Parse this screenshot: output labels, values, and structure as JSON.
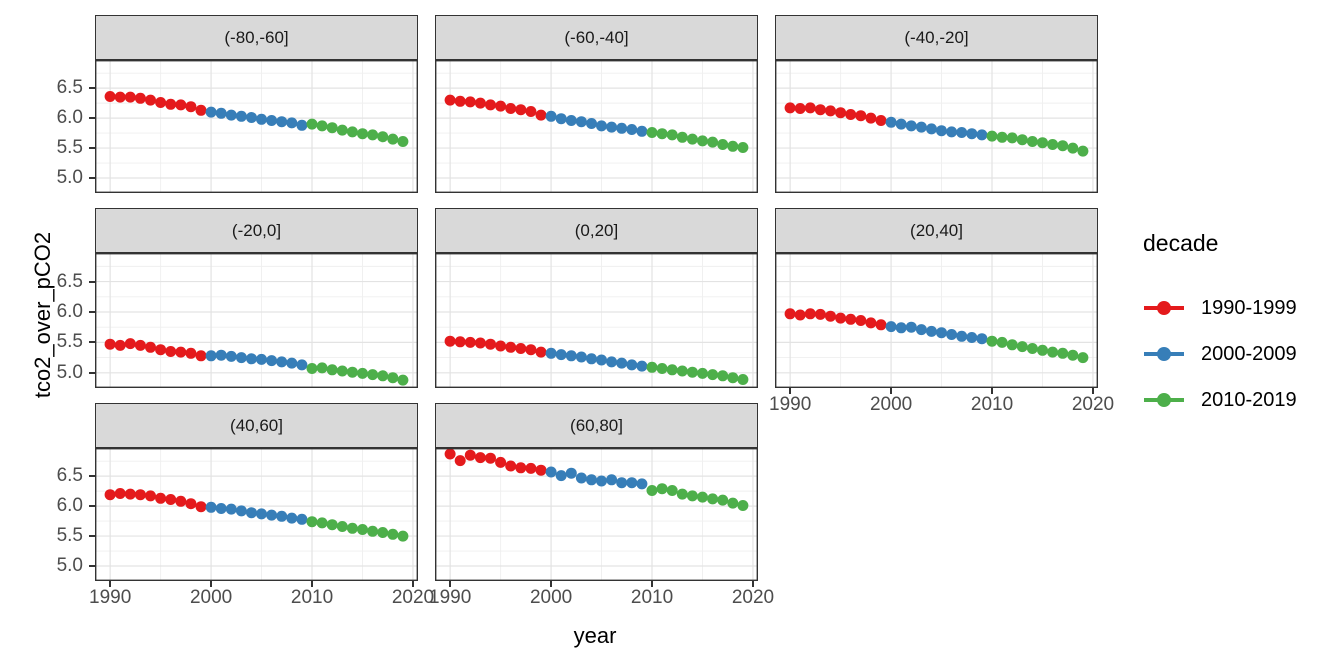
{
  "y_axis": {
    "title": "tco2_over_pCO2",
    "tick_labels": [
      "6.5",
      "6.0",
      "5.5",
      "5.0"
    ],
    "tick_values": [
      6.5,
      6.0,
      5.5,
      5.0
    ]
  },
  "x_axis": {
    "title": "year",
    "tick_labels": [
      "1990",
      "2000",
      "2010",
      "2020"
    ],
    "tick_values": [
      1990,
      2000,
      2010,
      2020
    ]
  },
  "legend": {
    "title": "decade",
    "items": [
      {
        "label": "1990-1999",
        "color": "#e41a1c"
      },
      {
        "label": "2000-2009",
        "color": "#377eb8"
      },
      {
        "label": "2010-2019",
        "color": "#4daf4a"
      }
    ]
  },
  "chart_data": {
    "type": "scatter",
    "title": "",
    "xlabel": "year",
    "ylabel": "tco2_over_pCO2",
    "xlim": [
      1988.5,
      2020.5
    ],
    "ylim": [
      4.75,
      6.97
    ],
    "x_major_ticks": [
      1990,
      2000,
      2010,
      2020
    ],
    "x_minor_ticks": [
      1995,
      2005,
      2015
    ],
    "y_major_ticks": [
      6.5,
      6.0,
      5.5,
      5.0
    ],
    "y_minor_ticks": [
      6.75,
      6.25,
      5.75,
      5.25
    ],
    "grid": "major+minor",
    "legend_position": "right",
    "series_variable": "decade",
    "series": [
      {
        "name": "1990-1999",
        "color": "#e41a1c",
        "start": 1990,
        "end": 1999
      },
      {
        "name": "2000-2009",
        "color": "#377eb8",
        "start": 2000,
        "end": 2009
      },
      {
        "name": "2010-2019",
        "color": "#4daf4a",
        "start": 2010,
        "end": 2019
      }
    ],
    "years": [
      1990,
      1991,
      1992,
      1993,
      1994,
      1995,
      1996,
      1997,
      1998,
      1999,
      2000,
      2001,
      2002,
      2003,
      2004,
      2005,
      2006,
      2007,
      2008,
      2009,
      2010,
      2011,
      2012,
      2013,
      2014,
      2015,
      2016,
      2017,
      2018,
      2019
    ],
    "facets": [
      {
        "label": "(-80,-60]",
        "values": [
          6.36,
          6.35,
          6.35,
          6.33,
          6.3,
          6.26,
          6.23,
          6.22,
          6.19,
          6.13,
          6.1,
          6.08,
          6.05,
          6.03,
          6.01,
          5.98,
          5.96,
          5.94,
          5.92,
          5.88,
          5.9,
          5.87,
          5.84,
          5.8,
          5.77,
          5.74,
          5.72,
          5.69,
          5.65,
          5.61
        ]
      },
      {
        "label": "(-60,-40]",
        "values": [
          6.3,
          6.28,
          6.27,
          6.25,
          6.22,
          6.2,
          6.16,
          6.14,
          6.11,
          6.05,
          6.03,
          5.99,
          5.96,
          5.94,
          5.91,
          5.87,
          5.85,
          5.83,
          5.81,
          5.78,
          5.76,
          5.74,
          5.72,
          5.68,
          5.65,
          5.62,
          5.6,
          5.56,
          5.53,
          5.51
        ]
      },
      {
        "label": "(-40,-20]",
        "values": [
          6.17,
          6.16,
          6.17,
          6.14,
          6.12,
          6.09,
          6.06,
          6.04,
          6.0,
          5.96,
          5.93,
          5.9,
          5.87,
          5.85,
          5.82,
          5.79,
          5.77,
          5.76,
          5.74,
          5.72,
          5.7,
          5.68,
          5.67,
          5.64,
          5.61,
          5.59,
          5.56,
          5.54,
          5.5,
          5.45
        ]
      },
      {
        "label": "(-20,0]",
        "values": [
          5.47,
          5.45,
          5.48,
          5.45,
          5.42,
          5.38,
          5.35,
          5.34,
          5.32,
          5.28,
          5.28,
          5.29,
          5.27,
          5.25,
          5.23,
          5.22,
          5.2,
          5.18,
          5.16,
          5.13,
          5.07,
          5.08,
          5.05,
          5.03,
          5.01,
          4.99,
          4.97,
          4.95,
          4.92,
          4.88
        ]
      },
      {
        "label": "(0,20]",
        "values": [
          5.52,
          5.51,
          5.5,
          5.49,
          5.47,
          5.44,
          5.42,
          5.4,
          5.38,
          5.34,
          5.32,
          5.3,
          5.28,
          5.26,
          5.23,
          5.21,
          5.18,
          5.16,
          5.13,
          5.11,
          5.09,
          5.07,
          5.05,
          5.03,
          5.01,
          4.99,
          4.97,
          4.95,
          4.92,
          4.89
        ]
      },
      {
        "label": "(20,40]",
        "values": [
          5.97,
          5.95,
          5.97,
          5.96,
          5.93,
          5.9,
          5.88,
          5.86,
          5.82,
          5.79,
          5.76,
          5.74,
          5.75,
          5.71,
          5.68,
          5.66,
          5.63,
          5.6,
          5.58,
          5.56,
          5.52,
          5.5,
          5.46,
          5.43,
          5.4,
          5.37,
          5.34,
          5.32,
          5.29,
          5.25
        ]
      },
      {
        "label": "(40,60]",
        "values": [
          6.19,
          6.21,
          6.2,
          6.19,
          6.17,
          6.13,
          6.11,
          6.08,
          6.04,
          5.99,
          5.98,
          5.96,
          5.95,
          5.92,
          5.89,
          5.87,
          5.85,
          5.83,
          5.8,
          5.78,
          5.74,
          5.72,
          5.69,
          5.66,
          5.63,
          5.61,
          5.58,
          5.56,
          5.53,
          5.5
        ]
      },
      {
        "label": "(60,80]",
        "values": [
          6.87,
          6.76,
          6.85,
          6.81,
          6.8,
          6.73,
          6.67,
          6.64,
          6.63,
          6.6,
          6.57,
          6.51,
          6.55,
          6.47,
          6.44,
          6.42,
          6.44,
          6.39,
          6.39,
          6.37,
          6.26,
          6.29,
          6.26,
          6.2,
          6.17,
          6.15,
          6.12,
          6.1,
          6.05,
          6.01
        ]
      }
    ],
    "style": {
      "panel_background": "#ffffff",
      "panel_border": "#333333",
      "strip_background": "#d9d9d9",
      "grid_major": "#e3e3e3",
      "grid_minor": "#efefef",
      "axis_text": "#4d4d4d",
      "point_radius": 5.5
    }
  }
}
